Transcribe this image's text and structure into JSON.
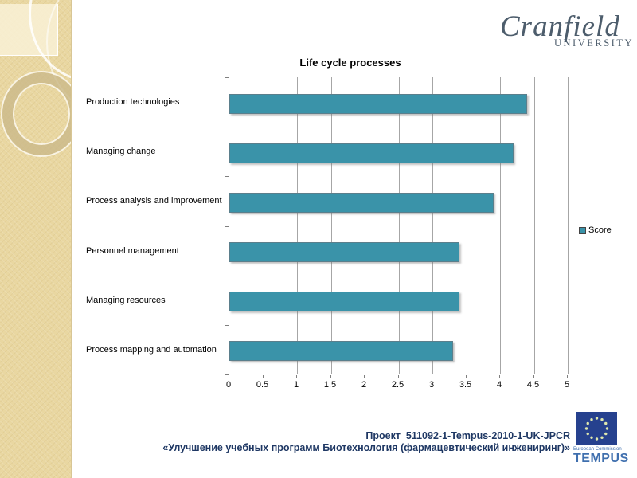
{
  "logo": {
    "name": "Cranfield",
    "sub": "UNIVERSITY"
  },
  "chart_data": {
    "type": "bar",
    "orientation": "horizontal",
    "title": "Life cycle processes",
    "categories": [
      "Production technologies",
      "Managing change",
      "Process analysis and improvement",
      "Personnel management",
      "Managing resources",
      "Process mapping and automation"
    ],
    "series": [
      {
        "name": "Score",
        "values": [
          4.4,
          4.2,
          3.9,
          3.4,
          3.4,
          3.3
        ]
      }
    ],
    "xlim": [
      0,
      5
    ],
    "xticks": [
      0,
      0.5,
      1,
      1.5,
      2,
      2.5,
      3,
      3.5,
      4,
      4.5,
      5
    ],
    "grid": true,
    "legend_position": "right",
    "bar_color": "#3a93a9"
  },
  "footer": {
    "line1": "Проект  511092-1-Tempus-2010-1-UK-JPCR",
    "line2": "«Улучшение учебных программ Биотехнология (фармацевтический инжениринг)»"
  },
  "tempus": {
    "caption": "European Commission",
    "name": "TEMPUS"
  }
}
